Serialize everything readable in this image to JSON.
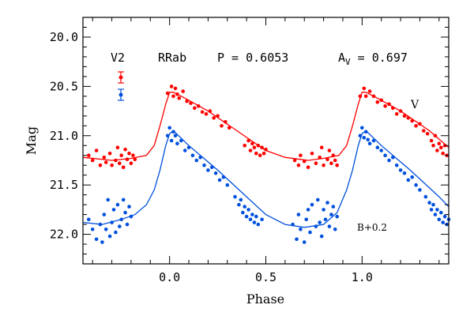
{
  "chart_data": {
    "type": "scatter",
    "xlabel": "Phase",
    "ylabel": "Mag",
    "xlim": [
      -0.45,
      1.45
    ],
    "ylim": [
      22.3,
      19.8
    ],
    "y_inverted": true,
    "xticks": [
      "0.0",
      "0.5",
      "1.0"
    ],
    "xtick_values": [
      0.0,
      0.5,
      1.0
    ],
    "yticks": [
      "20.0",
      "20.5",
      "21.0",
      "21.5",
      "22.0"
    ],
    "ytick_values": [
      20.0,
      20.5,
      21.0,
      21.5,
      22.0
    ],
    "header": {
      "star": "V2",
      "type": "RRab",
      "period": "P = 0.6053",
      "amp_prefix": "A",
      "amp_sub": "V",
      "amp_value": " = 0.697"
    },
    "annotations": {
      "v_label": "V",
      "b_label": "B+0.2"
    },
    "colors": {
      "V": "#ff0000",
      "B": "#0050dd"
    },
    "series": [
      {
        "name": "V",
        "label": "V",
        "color": "#ff0000",
        "curve": [
          [
            -0.45,
            21.22
          ],
          [
            -0.3,
            21.25
          ],
          [
            -0.2,
            21.23
          ],
          [
            -0.12,
            21.2
          ],
          [
            -0.08,
            21.1
          ],
          [
            -0.05,
            20.9
          ],
          [
            -0.02,
            20.68
          ],
          [
            0.0,
            20.56
          ],
          [
            0.02,
            20.56
          ],
          [
            0.08,
            20.62
          ],
          [
            0.2,
            20.75
          ],
          [
            0.35,
            20.95
          ],
          [
            0.5,
            21.15
          ],
          [
            0.6,
            21.22
          ],
          [
            0.72,
            21.25
          ],
          [
            0.8,
            21.23
          ],
          [
            0.88,
            21.2
          ],
          [
            0.92,
            21.1
          ],
          [
            0.95,
            20.9
          ],
          [
            0.98,
            20.68
          ],
          [
            1.0,
            20.56
          ],
          [
            1.02,
            20.56
          ],
          [
            1.08,
            20.62
          ],
          [
            1.2,
            20.75
          ],
          [
            1.35,
            20.95
          ],
          [
            1.45,
            21.12
          ]
        ],
        "points": [
          [
            -0.42,
            21.2
          ],
          [
            -0.4,
            21.25
          ],
          [
            -0.38,
            21.15
          ],
          [
            -0.36,
            21.3
          ],
          [
            -0.34,
            21.22
          ],
          [
            -0.33,
            21.27
          ],
          [
            -0.31,
            21.18
          ],
          [
            -0.3,
            21.3
          ],
          [
            -0.28,
            21.25
          ],
          [
            -0.27,
            21.12
          ],
          [
            -0.26,
            21.28
          ],
          [
            -0.25,
            21.2
          ],
          [
            -0.24,
            21.32
          ],
          [
            -0.23,
            21.14
          ],
          [
            -0.22,
            21.24
          ],
          [
            -0.21,
            21.18
          ],
          [
            -0.2,
            21.28
          ],
          [
            -0.19,
            21.2
          ],
          [
            -0.18,
            21.24
          ],
          [
            -0.01,
            20.57
          ],
          [
            0.01,
            20.5
          ],
          [
            0.02,
            20.6
          ],
          [
            0.03,
            20.52
          ],
          [
            0.04,
            20.58
          ],
          [
            0.05,
            20.62
          ],
          [
            0.07,
            20.55
          ],
          [
            0.09,
            20.65
          ],
          [
            0.11,
            20.67
          ],
          [
            0.13,
            20.72
          ],
          [
            0.15,
            20.7
          ],
          [
            0.17,
            20.76
          ],
          [
            0.19,
            20.78
          ],
          [
            0.21,
            20.75
          ],
          [
            0.23,
            20.82
          ],
          [
            0.25,
            20.8
          ],
          [
            0.27,
            20.9
          ],
          [
            0.29,
            20.86
          ],
          [
            0.31,
            20.92
          ],
          [
            0.39,
            21.1
          ],
          [
            0.41,
            21.05
          ],
          [
            0.42,
            21.15
          ],
          [
            0.43,
            21.08
          ],
          [
            0.44,
            21.12
          ],
          [
            0.45,
            21.18
          ],
          [
            0.46,
            21.1
          ],
          [
            0.47,
            21.2
          ],
          [
            0.48,
            21.12
          ],
          [
            0.49,
            21.18
          ],
          [
            0.5,
            21.14
          ],
          [
            0.65,
            21.25
          ],
          [
            0.67,
            21.3
          ],
          [
            0.68,
            21.2
          ],
          [
            0.7,
            21.26
          ],
          [
            0.72,
            21.32
          ],
          [
            0.74,
            21.18
          ],
          [
            0.76,
            21.28
          ],
          [
            0.78,
            21.22
          ],
          [
            0.79,
            21.12
          ],
          [
            0.8,
            21.3
          ],
          [
            0.82,
            21.24
          ],
          [
            0.83,
            21.15
          ],
          [
            0.84,
            21.28
          ],
          [
            0.85,
            21.2
          ],
          [
            0.86,
            21.25
          ],
          [
            0.87,
            21.3
          ],
          [
            0.99,
            20.6
          ],
          [
            1.01,
            20.52
          ],
          [
            1.02,
            20.6
          ],
          [
            1.04,
            20.55
          ],
          [
            1.06,
            20.6
          ],
          [
            1.08,
            20.66
          ],
          [
            1.1,
            20.64
          ],
          [
            1.12,
            20.7
          ],
          [
            1.14,
            20.68
          ],
          [
            1.16,
            20.72
          ],
          [
            1.18,
            20.78
          ],
          [
            1.2,
            20.75
          ],
          [
            1.22,
            20.8
          ],
          [
            1.24,
            20.82
          ],
          [
            1.26,
            20.85
          ],
          [
            1.28,
            20.9
          ],
          [
            1.3,
            20.88
          ],
          [
            1.32,
            20.95
          ],
          [
            1.34,
            20.98
          ],
          [
            1.36,
            21.05
          ],
          [
            1.37,
            21.1
          ],
          [
            1.38,
            21.0
          ],
          [
            1.39,
            21.15
          ],
          [
            1.4,
            21.08
          ],
          [
            1.41,
            21.12
          ],
          [
            1.42,
            21.18
          ],
          [
            1.43,
            21.1
          ],
          [
            1.44,
            21.2
          ]
        ]
      },
      {
        "name": "B+0.2",
        "label": "B+0.2",
        "color": "#0050dd",
        "curve": [
          [
            -0.45,
            21.88
          ],
          [
            -0.35,
            21.9
          ],
          [
            -0.25,
            21.85
          ],
          [
            -0.18,
            21.8
          ],
          [
            -0.12,
            21.7
          ],
          [
            -0.08,
            21.55
          ],
          [
            -0.05,
            21.35
          ],
          [
            -0.02,
            21.1
          ],
          [
            0.0,
            20.98
          ],
          [
            0.02,
            20.95
          ],
          [
            0.1,
            21.1
          ],
          [
            0.25,
            21.35
          ],
          [
            0.4,
            21.62
          ],
          [
            0.5,
            21.8
          ],
          [
            0.6,
            21.9
          ],
          [
            0.7,
            21.93
          ],
          [
            0.8,
            21.9
          ],
          [
            0.87,
            21.78
          ],
          [
            0.92,
            21.55
          ],
          [
            0.95,
            21.35
          ],
          [
            0.98,
            21.1
          ],
          [
            1.0,
            20.98
          ],
          [
            1.02,
            20.95
          ],
          [
            1.1,
            21.1
          ],
          [
            1.25,
            21.35
          ],
          [
            1.4,
            21.62
          ],
          [
            1.45,
            21.72
          ]
        ],
        "points": [
          [
            -0.42,
            21.85
          ],
          [
            -0.4,
            21.95
          ],
          [
            -0.38,
            22.05
          ],
          [
            -0.36,
            21.9
          ],
          [
            -0.35,
            22.08
          ],
          [
            -0.34,
            21.8
          ],
          [
            -0.33,
            21.95
          ],
          [
            -0.32,
            21.65
          ],
          [
            -0.31,
            22.02
          ],
          [
            -0.3,
            21.88
          ],
          [
            -0.29,
            21.75
          ],
          [
            -0.28,
            21.98
          ],
          [
            -0.27,
            21.7
          ],
          [
            -0.26,
            21.92
          ],
          [
            -0.25,
            21.85
          ],
          [
            -0.24,
            21.65
          ],
          [
            -0.23,
            21.78
          ],
          [
            -0.22,
            21.9
          ],
          [
            -0.21,
            21.72
          ],
          [
            -0.2,
            21.82
          ],
          [
            -0.01,
            21.0
          ],
          [
            0.0,
            20.92
          ],
          [
            0.01,
            21.05
          ],
          [
            0.02,
            20.96
          ],
          [
            0.03,
            21.0
          ],
          [
            0.04,
            21.08
          ],
          [
            0.06,
            21.05
          ],
          [
            0.08,
            21.15
          ],
          [
            0.1,
            21.12
          ],
          [
            0.12,
            21.2
          ],
          [
            0.14,
            21.25
          ],
          [
            0.16,
            21.22
          ],
          [
            0.18,
            21.3
          ],
          [
            0.2,
            21.35
          ],
          [
            0.22,
            21.32
          ],
          [
            0.24,
            21.38
          ],
          [
            0.26,
            21.45
          ],
          [
            0.28,
            21.42
          ],
          [
            0.3,
            21.5
          ],
          [
            0.34,
            21.62
          ],
          [
            0.36,
            21.7
          ],
          [
            0.37,
            21.65
          ],
          [
            0.38,
            21.78
          ],
          [
            0.39,
            21.72
          ],
          [
            0.4,
            21.82
          ],
          [
            0.41,
            21.75
          ],
          [
            0.42,
            21.85
          ],
          [
            0.43,
            21.8
          ],
          [
            0.44,
            21.88
          ],
          [
            0.45,
            21.82
          ],
          [
            0.46,
            21.9
          ],
          [
            0.48,
            21.85
          ],
          [
            0.64,
            21.9
          ],
          [
            0.66,
            22.05
          ],
          [
            0.67,
            21.8
          ],
          [
            0.68,
            21.95
          ],
          [
            0.7,
            22.08
          ],
          [
            0.71,
            21.85
          ],
          [
            0.72,
            21.75
          ],
          [
            0.73,
            21.98
          ],
          [
            0.74,
            21.7
          ],
          [
            0.76,
            21.92
          ],
          [
            0.77,
            21.65
          ],
          [
            0.78,
            21.88
          ],
          [
            0.79,
            22.02
          ],
          [
            0.8,
            21.75
          ],
          [
            0.81,
            21.85
          ],
          [
            0.82,
            21.68
          ],
          [
            0.83,
            21.92
          ],
          [
            0.84,
            21.8
          ],
          [
            0.85,
            21.72
          ],
          [
            0.86,
            21.95
          ],
          [
            0.87,
            21.82
          ],
          [
            0.99,
            21.0
          ],
          [
            1.0,
            20.92
          ],
          [
            1.01,
            21.02
          ],
          [
            1.02,
            20.96
          ],
          [
            1.03,
            21.04
          ],
          [
            1.04,
            21.08
          ],
          [
            1.06,
            21.05
          ],
          [
            1.08,
            21.12
          ],
          [
            1.1,
            21.15
          ],
          [
            1.12,
            21.2
          ],
          [
            1.14,
            21.25
          ],
          [
            1.16,
            21.22
          ],
          [
            1.18,
            21.3
          ],
          [
            1.2,
            21.35
          ],
          [
            1.22,
            21.38
          ],
          [
            1.24,
            21.45
          ],
          [
            1.26,
            21.42
          ],
          [
            1.28,
            21.5
          ],
          [
            1.3,
            21.55
          ],
          [
            1.33,
            21.62
          ],
          [
            1.35,
            21.68
          ],
          [
            1.36,
            21.75
          ],
          [
            1.37,
            21.7
          ],
          [
            1.38,
            21.8
          ],
          [
            1.39,
            21.75
          ],
          [
            1.4,
            21.85
          ],
          [
            1.41,
            21.78
          ],
          [
            1.42,
            21.88
          ],
          [
            1.43,
            21.82
          ],
          [
            1.44,
            21.9
          ],
          [
            1.45,
            21.85
          ]
        ]
      }
    ],
    "legend_error_bars": [
      {
        "series": "V",
        "color": "#ff0000"
      },
      {
        "series": "B+0.2",
        "color": "#0050dd"
      }
    ]
  }
}
